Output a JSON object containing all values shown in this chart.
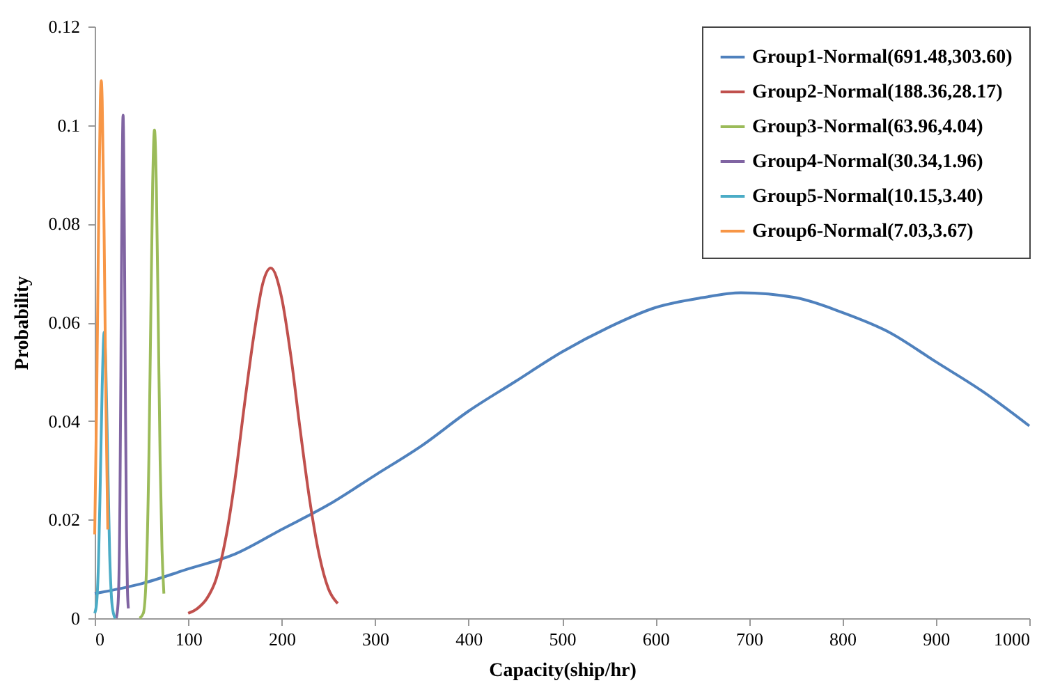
{
  "chart_data": {
    "type": "line",
    "xlabel": "Capacity(ship/hr)",
    "ylabel": "Probability",
    "xlim": [
      0,
      1000
    ],
    "xticks": [
      0,
      100,
      200,
      300,
      400,
      500,
      600,
      700,
      800,
      900,
      1000
    ],
    "ylim": [
      0,
      0.12
    ],
    "yticks": [
      0,
      0.02,
      0.04,
      0.06,
      0.08,
      0.1,
      0.12
    ],
    "grid": false,
    "legend": "top right",
    "series": [
      {
        "name": "Group1-Normal(691.48,303.60)",
        "color": "#4f81bd",
        "x": [
          0,
          50,
          100,
          150,
          200,
          250,
          300,
          350,
          400,
          450,
          500,
          550,
          600,
          650,
          691.48,
          750,
          800,
          850,
          900,
          950,
          1000
        ],
        "values": [
          0.005,
          0.007,
          0.01,
          0.013,
          0.018,
          0.023,
          0.029,
          0.035,
          0.042,
          0.048,
          0.054,
          0.059,
          0.063,
          0.065,
          0.066,
          0.065,
          0.062,
          0.058,
          0.052,
          0.046,
          0.039
        ]
      },
      {
        "name": "Group2-Normal(188.36,28.17)",
        "color": "#c0504d",
        "x": [
          100,
          110,
          120,
          130,
          140,
          150,
          160,
          170,
          180,
          188.36,
          200,
          210,
          220,
          230,
          240,
          250,
          260
        ],
        "values": [
          0.001,
          0.002,
          0.004,
          0.008,
          0.016,
          0.028,
          0.043,
          0.057,
          0.068,
          0.071,
          0.065,
          0.053,
          0.038,
          0.024,
          0.013,
          0.006,
          0.003
        ]
      },
      {
        "name": "Group3-Normal(63.96,4.04)",
        "color": "#9bbb59",
        "x": [
          48,
          52,
          55,
          58,
          60,
          62,
          63.96,
          66,
          68,
          70,
          72,
          74
        ],
        "values": [
          0,
          0.001,
          0.008,
          0.033,
          0.061,
          0.088,
          0.099,
          0.087,
          0.06,
          0.032,
          0.014,
          0.005
        ]
      },
      {
        "name": "Group4-Normal(30.34,1.96)",
        "color": "#8064a2",
        "x": [
          23,
          25,
          27,
          28,
          29,
          30.34,
          32,
          33,
          34,
          35,
          36
        ],
        "values": [
          0,
          0.003,
          0.024,
          0.05,
          0.081,
          0.102,
          0.071,
          0.041,
          0.018,
          0.006,
          0.002
        ]
      },
      {
        "name": "Group5-Normal(10.15,3.40)",
        "color": "#4bacc6",
        "x": [
          0,
          2,
          4,
          6,
          8,
          10.15,
          12,
          14,
          16,
          18,
          20,
          22
        ],
        "values": [
          0.001,
          0.003,
          0.011,
          0.028,
          0.047,
          0.058,
          0.05,
          0.031,
          0.013,
          0.004,
          0.001,
          0
        ]
      },
      {
        "name": "Group6-Normal(7.03,3.67)",
        "color": "#f79646",
        "x": [
          0,
          2,
          4,
          6,
          7.03,
          8,
          10,
          12,
          14
        ],
        "values": [
          0.017,
          0.043,
          0.077,
          0.105,
          0.109,
          0.105,
          0.079,
          0.044,
          0.018
        ]
      }
    ]
  }
}
